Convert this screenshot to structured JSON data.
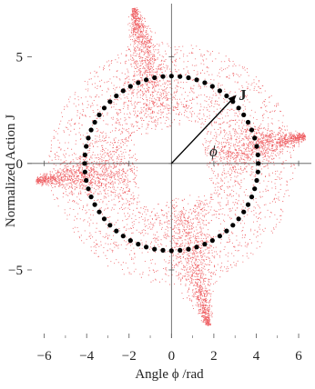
{
  "chart_data": {
    "type": "scatter",
    "xlabel": "Angle ϕ /rad",
    "ylabel": "Normalized Action J",
    "xlim": [
      -6.8,
      6.6
    ],
    "ylim": [
      -8.2,
      7.5
    ],
    "xticks": [
      -6,
      -4,
      -2,
      0,
      2,
      4,
      6
    ],
    "yticks": [
      -5,
      0,
      5
    ],
    "xtick_labels": [
      "−6",
      "−4",
      "−2",
      "0",
      "2",
      "4",
      "6"
    ],
    "ytick_labels": [
      "−5",
      "0",
      "5"
    ],
    "grid": false,
    "colors": {
      "scatter": "#e8242a",
      "circle": "#000000",
      "axes": "#555555"
    },
    "series": [
      {
        "kind": "scatter-cloud",
        "description_points": "four-lobed star distribution of particles",
        "tips": [
          {
            "x": -1.8,
            "y": 7.3
          },
          {
            "x": 1.7,
            "y": -7.6
          },
          {
            "x": -6.4,
            "y": -0.8
          },
          {
            "x": 6.3,
            "y": 1.3
          }
        ],
        "inner_hole_radius": 2.1,
        "outer_radius": 5.4
      },
      {
        "kind": "circle-markers",
        "center": {
          "x": 0,
          "y": 0
        },
        "radius": 4.1,
        "count": 64
      }
    ],
    "annotations": {
      "vector": {
        "from": {
          "x": 0,
          "y": 0
        },
        "to": {
          "x": 3.0,
          "y": 3.15
        },
        "label": "J"
      },
      "angle_label": {
        "text": "ϕ",
        "x": 1.1,
        "y": 0.5
      }
    }
  }
}
